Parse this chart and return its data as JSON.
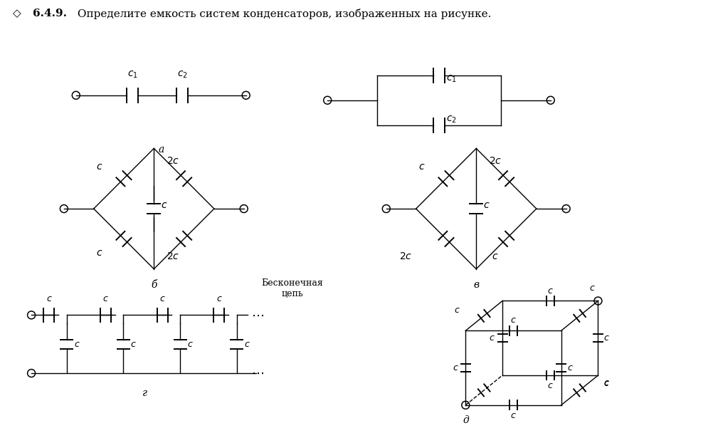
{
  "bg_color": "#ffffff",
  "line_color": "#000000",
  "title_bold": "6.4.9.",
  "title_text": " Определите емкость систем конденсаторов, изображенных на рисунке.",
  "diamond": "◇",
  "label_a": "а",
  "label_b": "б",
  "label_v": "в",
  "label_g": "г",
  "label_d": "д",
  "beskonechnaya": "Бесконечная\nцепь"
}
